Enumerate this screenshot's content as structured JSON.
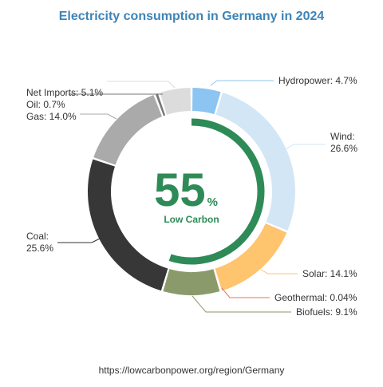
{
  "chart_data": {
    "type": "pie",
    "variant": "donut",
    "title": "Electricity consumption in Germany in 2024",
    "center": {
      "value": "55",
      "unit": "%",
      "label": "Low Carbon"
    },
    "low_carbon_share": 55,
    "source": "https://lowcarbonpower.org/region/Germany",
    "slices": [
      {
        "name": "Hydropower",
        "value": 4.7,
        "label": "Hydropower: 4.7%",
        "color": "#8cc4f2"
      },
      {
        "name": "Wind",
        "value": 26.6,
        "label": "Wind: 26.6%",
        "color": "#d3e6f6"
      },
      {
        "name": "Solar",
        "value": 14.1,
        "label": "Solar: 14.1%",
        "color": "#fec46e"
      },
      {
        "name": "Geothermal",
        "value": 0.04,
        "label": "Geothermal: 0.04%",
        "color": "#f2705e"
      },
      {
        "name": "Biofuels",
        "value": 9.1,
        "label": "Biofuels: 9.1%",
        "color": "#8a9a6a"
      },
      {
        "name": "Coal",
        "value": 25.6,
        "label": "Coal: 25.6%",
        "color": "#373737"
      },
      {
        "name": "Gas",
        "value": 14.0,
        "label": "Gas: 14.0%",
        "color": "#aaaaaa"
      },
      {
        "name": "Oil",
        "value": 0.7,
        "label": "Oil: 0.7%",
        "color": "#777777"
      },
      {
        "name": "Net Imports",
        "value": 5.1,
        "label": "Net Imports: 5.1%",
        "color": "#dcdcdc"
      }
    ],
    "colors": {
      "title": "#3d84b8",
      "low_carbon": "#2e8b57",
      "text": "#333333",
      "connector": "#999999"
    }
  }
}
